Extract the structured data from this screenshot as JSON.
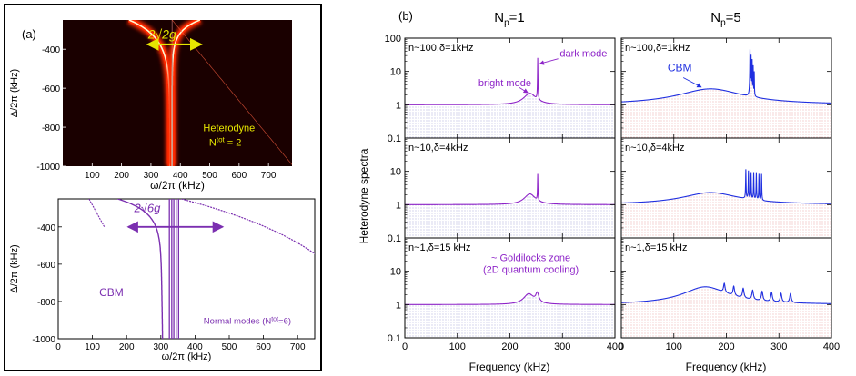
{
  "figure": {
    "panel_a_label": "(a)",
    "panel_b_label": "(b)",
    "col_left_title_main": "N",
    "col_left_title_sub": "p",
    "col_left_title_rest": "=1",
    "col_right_title_main": "N",
    "col_right_title_sub": "p",
    "col_right_title_rest": "=5",
    "spectra_ylabel": "Heterodyne spectra",
    "spectra_xlabel": "Frequency (kHz)"
  },
  "chart_data": [
    {
      "id": "a-top",
      "type": "heatmap",
      "xlabel": "ω/2π (kHz)",
      "ylabel": "Δ/2π (kHz)",
      "xlim": [
        0,
        780
      ],
      "ylim": [
        -1000,
        -250
      ],
      "xticks": [
        "100",
        "200",
        "300",
        "400",
        "500",
        "600",
        "700"
      ],
      "yticks": [
        "-400",
        "-600",
        "-800",
        "-1000"
      ],
      "colors": {
        "background": "#1a0000",
        "hot": "#ff2a00",
        "core": "#fff6d0"
      },
      "annotations": {
        "splitting": "2√2g",
        "label1": "Heterodyne",
        "label2_main": "N",
        "label2_sup": "tot",
        "label2_rest": " = 2"
      },
      "arrow": {
        "x1": 290,
        "x2": 470,
        "y": -375
      }
    },
    {
      "id": "a-bottom",
      "type": "line",
      "xlabel": "ω/2π (kHz)",
      "ylabel": "Δ/2π (kHz)",
      "xlim": [
        0,
        750
      ],
      "ylim": [
        -1000,
        -250
      ],
      "xticks": [
        "0",
        "100",
        "200",
        "300",
        "400",
        "500",
        "600",
        "700"
      ],
      "yticks": [
        "-400",
        "-600",
        "-800",
        "-1000"
      ],
      "color": "#7b2fb0",
      "annotations": {
        "splitting": "2√6g",
        "cbm": "CBM",
        "normal_modes_main": "Normal modes (N",
        "normal_modes_sup": "tot",
        "normal_modes_rest": "=6)"
      },
      "arrow": {
        "x1": 205,
        "x2": 480,
        "y": -400
      },
      "vertical_lines_x": [
        325,
        332,
        338,
        345,
        352
      ]
    },
    {
      "id": "b-spectra",
      "type": "line",
      "x_range": [
        0,
        400
      ],
      "y_range": [
        0.1,
        100
      ],
      "y_scale": "log",
      "xticks": [
        "0",
        "100",
        "200",
        "300",
        "400"
      ],
      "yticks": [
        "0.1",
        "1",
        "10",
        "100"
      ],
      "colors": {
        "left": "#8e24c8",
        "right": "#1f2fe0",
        "hatch_left": "#8888cc",
        "hatch_right": "#e08080"
      },
      "panels": [
        {
          "row": 0,
          "col": 0,
          "label": "n~100,δ=1kHz",
          "bright_mode": "bright mode",
          "dark_mode": "dark mode",
          "peaks": [
            {
              "x": 238,
              "h": 2.2,
              "w": 12
            },
            {
              "x": 253,
              "h": 25,
              "w": 0.25
            }
          ]
        },
        {
          "row": 1,
          "col": 0,
          "label": "n~10,δ=4kHz",
          "peaks": [
            {
              "x": 238,
              "h": 2.1,
              "w": 11
            },
            {
              "x": 253,
              "h": 8,
              "w": 0.3
            }
          ]
        },
        {
          "row": 2,
          "col": 0,
          "label": "n~1,δ=15 kHz",
          "zone1": "~ Goldilocks zone",
          "zone2": "(2D quantum cooling)",
          "peaks": [
            {
              "x": 236,
              "h": 2.1,
              "w": 10
            },
            {
              "x": 252,
              "h": 2.1,
              "w": 3
            }
          ]
        },
        {
          "row": 0,
          "col": 1,
          "label": "n~100,δ=1kHz",
          "cbm": "CBM",
          "peaks": [
            {
              "x": 170,
              "h": 3.0,
              "w": 60
            },
            {
              "x": 245,
              "h": 45,
              "w": 0.25
            },
            {
              "x": 247,
              "h": 30,
              "w": 0.25
            },
            {
              "x": 249,
              "h": 22,
              "w": 0.25
            },
            {
              "x": 251,
              "h": 14,
              "w": 0.25
            },
            {
              "x": 253,
              "h": 9,
              "w": 0.25
            }
          ]
        },
        {
          "row": 1,
          "col": 1,
          "label": "n~10,δ=4kHz",
          "peaks": [
            {
              "x": 170,
              "h": 2.3,
              "w": 55
            },
            {
              "x": 237,
              "h": 11,
              "w": 0.3
            },
            {
              "x": 242,
              "h": 10,
              "w": 0.3
            },
            {
              "x": 247,
              "h": 9,
              "w": 0.3
            },
            {
              "x": 252,
              "h": 9,
              "w": 0.3
            },
            {
              "x": 257,
              "h": 9,
              "w": 0.3
            },
            {
              "x": 262,
              "h": 8,
              "w": 0.3
            },
            {
              "x": 267,
              "h": 8,
              "w": 0.3
            }
          ]
        },
        {
          "row": 2,
          "col": 1,
          "label": "n~1,δ=15 kHz",
          "peaks": [
            {
              "x": 160,
              "h": 3.4,
              "w": 40
            },
            {
              "x": 196,
              "h": 3.0,
              "w": 1.5
            },
            {
              "x": 214,
              "h": 2.7,
              "w": 1.5
            },
            {
              "x": 232,
              "h": 2.5,
              "w": 1.5
            },
            {
              "x": 250,
              "h": 2.3,
              "w": 1.5
            },
            {
              "x": 268,
              "h": 2.2,
              "w": 1.5
            },
            {
              "x": 286,
              "h": 2.1,
              "w": 1.5
            },
            {
              "x": 304,
              "h": 2.0,
              "w": 1.5
            },
            {
              "x": 322,
              "h": 2.0,
              "w": 1.5
            }
          ]
        }
      ]
    }
  ]
}
